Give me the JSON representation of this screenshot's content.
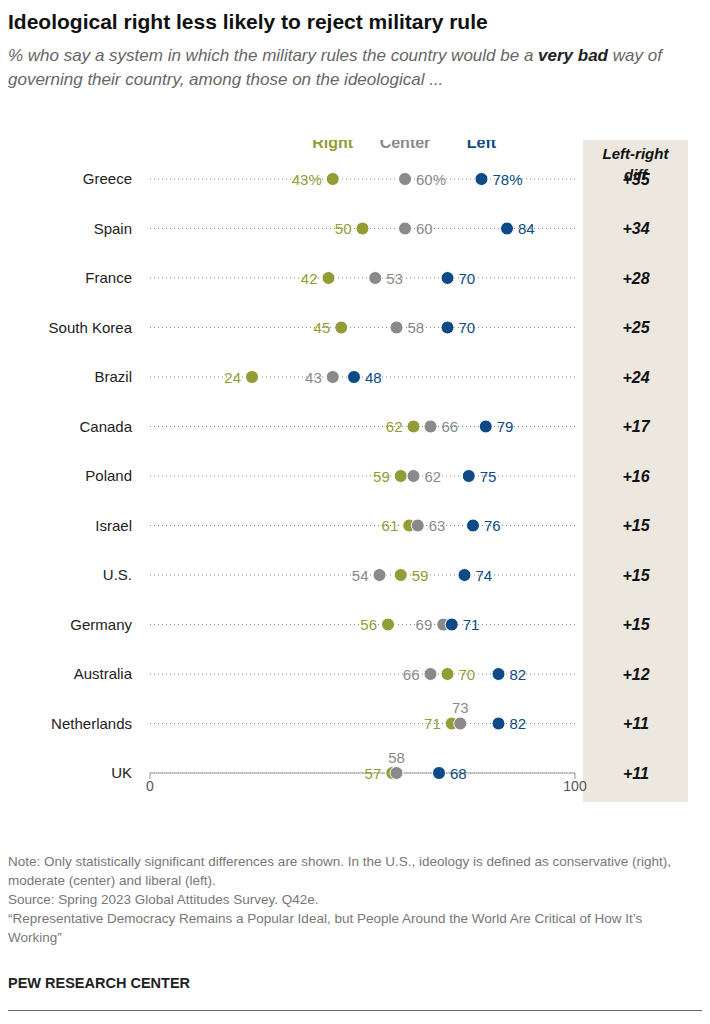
{
  "chart_data": {
    "type": "dot",
    "title": "Ideological right less likely to reject military rule",
    "subtitle": "% who say a system in which the military rules the country would be a very bad way of governing their country, among those on the ideological ...",
    "subtitle_emphasis": "very bad",
    "categories": [
      "Greece",
      "Spain",
      "France",
      "South Korea",
      "Brazil",
      "Canada",
      "Poland",
      "Israel",
      "U.S.",
      "Germany",
      "Australia",
      "Netherlands",
      "UK"
    ],
    "series": [
      {
        "name": "Right",
        "color": "#949d35",
        "values": [
          43,
          50,
          42,
          45,
          24,
          62,
          59,
          61,
          59,
          56,
          70,
          71,
          57
        ],
        "value_labels": [
          "43%",
          "50",
          "42",
          "45",
          "24",
          "62",
          "59",
          "61",
          "59",
          "56",
          "70",
          "71",
          "57"
        ]
      },
      {
        "name": "Center",
        "color": "#8a8a8a",
        "values": [
          60,
          60,
          53,
          58,
          43,
          66,
          62,
          63,
          54,
          69,
          66,
          73,
          58
        ],
        "value_labels": [
          "60%",
          "60",
          "53",
          "58",
          "43",
          "66",
          "62",
          "63",
          "54",
          "69",
          "66",
          "73",
          "58"
        ]
      },
      {
        "name": "Left",
        "color": "#0d4a86",
        "values": [
          78,
          84,
          70,
          70,
          48,
          79,
          75,
          76,
          74,
          71,
          82,
          82,
          68
        ],
        "value_labels": [
          "78%",
          "84",
          "70",
          "70",
          "48",
          "79",
          "75",
          "76",
          "74",
          "71",
          "82",
          "82",
          "68"
        ]
      }
    ],
    "left_right_diff": {
      "title": "Left-right diff",
      "values": [
        35,
        34,
        28,
        25,
        24,
        17,
        16,
        15,
        15,
        15,
        12,
        11,
        11
      ],
      "value_labels": [
        "+35",
        "+34",
        "+28",
        "+25",
        "+24",
        "+17",
        "+16",
        "+15",
        "+15",
        "+15",
        "+12",
        "+11",
        "+11"
      ]
    },
    "xlim": [
      0,
      100
    ],
    "xticks": [
      0,
      100
    ],
    "grid": true,
    "data_labels": true,
    "note": "Note: Only statistically significant differences are shown. In the U.S., ideology is defined as conservative (right), moderate (center) and liberal (left).",
    "source": "Source: Spring 2023 Global Attitudes Survey. Q42e.",
    "report": "“Representative Democracy Remains a Popular Ideal, but People Around the World Are Critical of How It’s Working”",
    "credit": "PEW RESEARCH CENTER"
  }
}
